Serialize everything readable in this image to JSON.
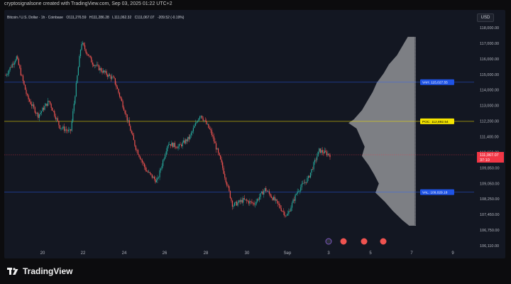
{
  "caption": "cryptosignalsone created with TradingView.com, Sep 03, 2025 01:22 UTC+2",
  "legend": {
    "symbol": "Bitcoin / U.S. Dollar · 1h · Coinbase",
    "open": "O111,276.59",
    "high": "H111,286.28",
    "low": "L111,062.32",
    "close": "C111,067.07",
    "change": "-209.52 (-0.19%)"
  },
  "currency": "USD",
  "brand": "TradingView",
  "colors": {
    "up": "#26a69a",
    "down": "#ef5350",
    "vah_line": "#2962ff",
    "poc_line": "#f5e400",
    "last_price": "#f23645",
    "profile": "#d6d6d6"
  },
  "chart_data": {
    "type": "candlestick",
    "title": "Bitcoin / U.S. Dollar · 1h · Coinbase",
    "xlabel": "",
    "ylabel": "",
    "x_ticks": [
      "20",
      "22",
      "24",
      "26",
      "28",
      "30",
      "Sep",
      "3",
      "5",
      "7",
      "9"
    ],
    "y_ticks": [
      "118,000.00",
      "117,000.00",
      "116,000.00",
      "115,000.00",
      "114,000.00",
      "113,000.00",
      "112,200.00",
      "111,400.00",
      "110,650.00",
      "109,850.00",
      "109,050.00",
      "108,250.00",
      "107,450.00",
      "106,750.00",
      "106,110.00"
    ],
    "ylim": [
      106110,
      118000
    ],
    "price_path": [
      {
        "date": "Aug 19",
        "price": 115400
      },
      {
        "date": "Aug 19 12:00",
        "price": 116400
      },
      {
        "date": "Aug 20",
        "price": 114200
      },
      {
        "date": "Aug 20 12:00",
        "price": 113200
      },
      {
        "date": "Aug 21",
        "price": 114000
      },
      {
        "date": "Aug 21 12:00",
        "price": 112600
      },
      {
        "date": "Aug 22",
        "price": 112300
      },
      {
        "date": "Aug 22 12:00",
        "price": 117200
      },
      {
        "date": "Aug 23",
        "price": 116100
      },
      {
        "date": "Aug 23 12:00",
        "price": 115600
      },
      {
        "date": "Aug 24",
        "price": 115200
      },
      {
        "date": "Aug 24 12:00",
        "price": 113500
      },
      {
        "date": "Aug 25",
        "price": 111500
      },
      {
        "date": "Aug 25 12:00",
        "price": 110200
      },
      {
        "date": "Aug 26",
        "price": 109600
      },
      {
        "date": "Aug 26 12:00",
        "price": 111700
      },
      {
        "date": "Aug 27",
        "price": 111500
      },
      {
        "date": "Aug 27 12:00",
        "price": 112000
      },
      {
        "date": "Aug 28",
        "price": 113300
      },
      {
        "date": "Aug 28 12:00",
        "price": 112300
      },
      {
        "date": "Aug 29",
        "price": 110500
      },
      {
        "date": "Aug 29 12:00",
        "price": 108300
      },
      {
        "date": "Aug 30",
        "price": 108600
      },
      {
        "date": "Aug 30 12:00",
        "price": 108400
      },
      {
        "date": "Aug 31",
        "price": 109200
      },
      {
        "date": "Aug 31 12:00",
        "price": 108500
      },
      {
        "date": "Sep 01",
        "price": 107700
      },
      {
        "date": "Sep 01 12:00",
        "price": 109100
      },
      {
        "date": "Sep 02",
        "price": 109800
      },
      {
        "date": "Sep 02 12:00",
        "price": 111300
      },
      {
        "date": "Sep 03",
        "price": 111067
      }
    ],
    "volume_profile": [
      {
        "price": 117500,
        "volume": 12
      },
      {
        "price": 117000,
        "volume": 20
      },
      {
        "price": 116500,
        "volume": 28
      },
      {
        "price": 116000,
        "volume": 40
      },
      {
        "price": 115500,
        "volume": 48
      },
      {
        "price": 115000,
        "volume": 58
      },
      {
        "price": 114500,
        "volume": 64
      },
      {
        "price": 114000,
        "volume": 72
      },
      {
        "price": 113500,
        "volume": 80
      },
      {
        "price": 113000,
        "volume": 92
      },
      {
        "price": 112800,
        "volume": 100
      },
      {
        "price": 112500,
        "volume": 88
      },
      {
        "price": 112000,
        "volume": 82
      },
      {
        "price": 111500,
        "volume": 76
      },
      {
        "price": 111000,
        "volume": 80
      },
      {
        "price": 110500,
        "volume": 70
      },
      {
        "price": 110000,
        "volume": 62
      },
      {
        "price": 109500,
        "volume": 55
      },
      {
        "price": 109000,
        "volume": 60
      },
      {
        "price": 108500,
        "volume": 46
      },
      {
        "price": 108000,
        "volume": 34
      },
      {
        "price": 107500,
        "volume": 20
      },
      {
        "price": 107200,
        "volume": 10
      }
    ],
    "levels": [
      {
        "label": "VAH: 115,027.55",
        "price": 115027.55,
        "color": "#2962ff"
      },
      {
        "label": "POC: 112,892.54",
        "price": 112892.54,
        "color": "#f5e400"
      },
      {
        "label": "VAL: 109,029.18",
        "price": 109029.18,
        "color": "#2962ff"
      }
    ],
    "last_price": {
      "value": 111067.07,
      "label": "111,067.07",
      "countdown": "37:10"
    }
  }
}
